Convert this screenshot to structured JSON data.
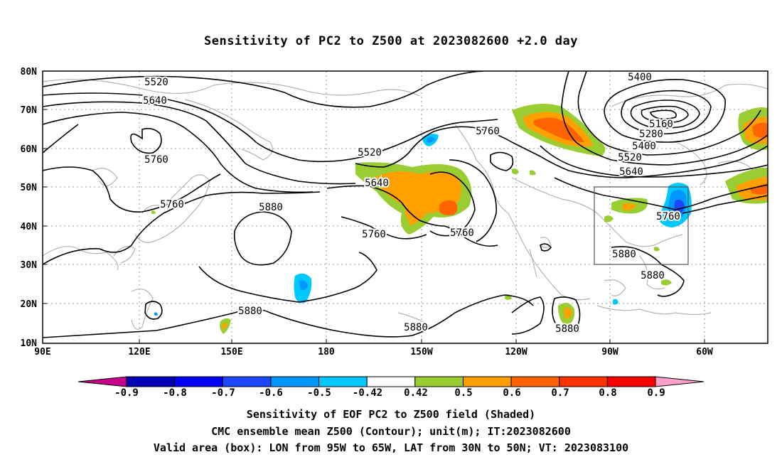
{
  "title": "Sensitivity of PC2 to Z500 at 2023082600 +2.0 day",
  "axes": {
    "lat_labels": [
      "80N",
      "70N",
      "60N",
      "50N",
      "40N",
      "30N",
      "20N",
      "10N"
    ],
    "lon_labels": [
      "90E",
      "120E",
      "150E",
      "180",
      "150W",
      "120W",
      "90W",
      "60W"
    ]
  },
  "contour_labels": [
    "5400",
    "5520",
    "5640",
    "5760",
    "5760",
    "5160",
    "5280",
    "5400",
    "5520",
    "5640",
    "5520",
    "5640",
    "5760",
    "5880",
    "5760",
    "5760",
    "5760",
    "5880",
    "5880",
    "5880",
    "5880",
    "5880"
  ],
  "colorbar": {
    "colors": [
      "#c8008c",
      "#0000b4",
      "#0000ff",
      "#1e46ff",
      "#0096ff",
      "#00c8ff",
      "#ffffff",
      "#9acd32",
      "#ffa000",
      "#ff6400",
      "#ff3200",
      "#ff0000",
      "#ffa0c8"
    ],
    "tick_labels": [
      "-0.9",
      "-0.8",
      "-0.7",
      "-0.6",
      "-0.5",
      "-0.42",
      "0.42",
      "0.5",
      "0.6",
      "0.7",
      "0.8",
      "0.9"
    ]
  },
  "captions": {
    "line1": "Sensitivity of EOF PC2 to Z500 field (Shaded)",
    "line2": "CMC ensemble mean Z500 (Contour); unit(m); IT:2023082600",
    "line3": "Valid area (box): LON from 95W to 65W, LAT from 30N to 50N; VT: 2023083100"
  }
}
